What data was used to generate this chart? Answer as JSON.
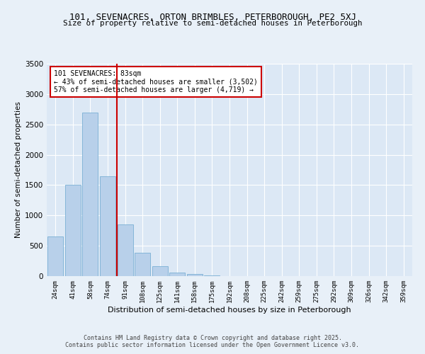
{
  "title1": "101, SEVENACRES, ORTON BRIMBLES, PETERBOROUGH, PE2 5XJ",
  "title2": "Size of property relative to semi-detached houses in Peterborough",
  "xlabel": "Distribution of semi-detached houses by size in Peterborough",
  "ylabel": "Number of semi-detached properties",
  "categories": [
    "24sqm",
    "41sqm",
    "58sqm",
    "74sqm",
    "91sqm",
    "108sqm",
    "125sqm",
    "141sqm",
    "158sqm",
    "175sqm",
    "192sqm",
    "208sqm",
    "225sqm",
    "242sqm",
    "259sqm",
    "275sqm",
    "292sqm",
    "309sqm",
    "326sqm",
    "342sqm",
    "359sqm"
  ],
  "values": [
    650,
    1500,
    2700,
    1650,
    850,
    390,
    160,
    60,
    30,
    10,
    5,
    3,
    2,
    1,
    1,
    0,
    0,
    0,
    0,
    0,
    0
  ],
  "bar_color": "#b8d0ea",
  "bar_edge_color": "#7aafd4",
  "vline_color": "#cc0000",
  "annotation_title": "101 SEVENACRES: 83sqm",
  "annotation_line1": "← 43% of semi-detached houses are smaller (3,502)",
  "annotation_line2": "57% of semi-detached houses are larger (4,719) →",
  "annotation_box_color": "#cc0000",
  "ylim": [
    0,
    3500
  ],
  "yticks": [
    0,
    500,
    1000,
    1500,
    2000,
    2500,
    3000,
    3500
  ],
  "bg_color": "#e8f0f8",
  "plot_bg_color": "#dce8f5",
  "footer1": "Contains HM Land Registry data © Crown copyright and database right 2025.",
  "footer2": "Contains public sector information licensed under the Open Government Licence v3.0."
}
